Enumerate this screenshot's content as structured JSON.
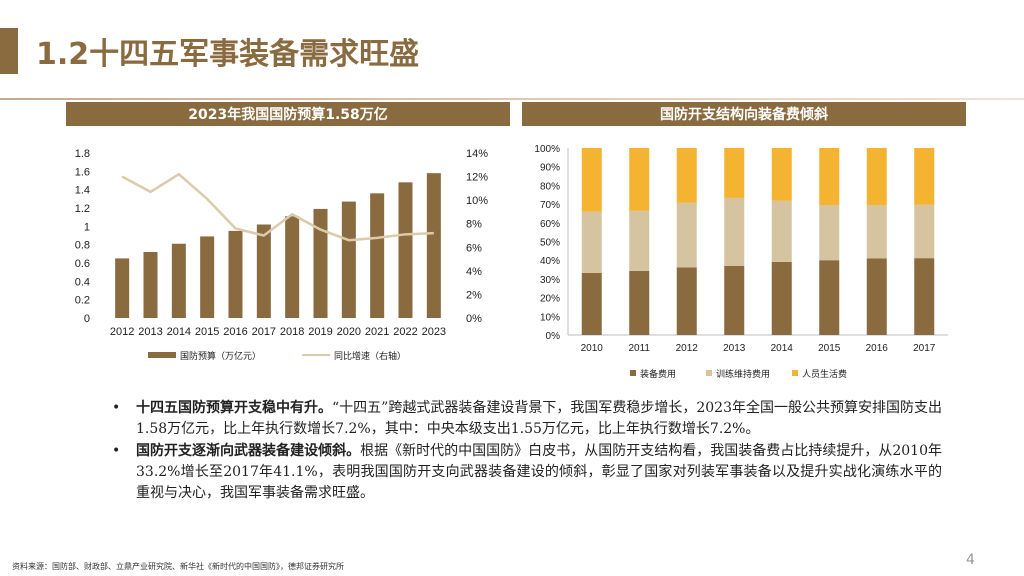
{
  "page": {
    "title": "1.2十四五军事装备需求旺盛",
    "page_number": "4",
    "source": "资料来源：国防部、财政部、立鼎产业研究院、新华社《新时代的中国国防》，德邦证券研究所"
  },
  "left_panel": {
    "header": "2023年我国国防预算1.58万亿"
  },
  "right_panel": {
    "header": "国防开支结构向装备费倾斜"
  },
  "colors": {
    "brown": "#8a6a3f",
    "line": "#dccbaa",
    "tan": "#d6c4a0",
    "gold": "#f4b431"
  },
  "chart_data": [
    {
      "type": "bar",
      "categories": [
        "2012",
        "2013",
        "2014",
        "2015",
        "2016",
        "2017",
        "2018",
        "2019",
        "2020",
        "2021",
        "2022",
        "2023"
      ],
      "series": [
        {
          "name": "国防预算（万亿元）",
          "type": "bar",
          "axis": "left",
          "values": [
            0.65,
            0.72,
            0.81,
            0.89,
            0.95,
            1.02,
            1.11,
            1.19,
            1.27,
            1.36,
            1.48,
            1.58
          ]
        },
        {
          "name": "同比增速（右轴）",
          "type": "line",
          "axis": "right",
          "values": [
            12.0,
            10.7,
            12.2,
            10.1,
            7.6,
            7.0,
            8.8,
            7.5,
            6.6,
            6.8,
            7.1,
            7.2
          ]
        }
      ],
      "y_left": {
        "range": [
          0,
          1.8
        ],
        "ticks": [
          "0",
          "0.2",
          "0.4",
          "0.6",
          "0.8",
          "1",
          "1.2",
          "1.4",
          "1.6",
          "1.8"
        ]
      },
      "y_right": {
        "range": [
          0,
          14
        ],
        "ticks": [
          "0%",
          "2%",
          "4%",
          "6%",
          "8%",
          "10%",
          "12%",
          "14%"
        ]
      },
      "legend_position": "bottom"
    },
    {
      "type": "bar",
      "stacked": true,
      "categories": [
        "2010",
        "2011",
        "2012",
        "2013",
        "2014",
        "2015",
        "2016",
        "2017"
      ],
      "series": [
        {
          "name": "装备费用",
          "values": [
            33.2,
            34.3,
            36.2,
            37.0,
            39.1,
            40.0,
            41.0,
            41.1
          ]
        },
        {
          "name": "训练维持费用",
          "values": [
            32.7,
            32.1,
            34.5,
            36.3,
            32.8,
            29.5,
            28.5,
            28.5
          ]
        },
        {
          "name": "人员生活费",
          "values": [
            34.1,
            33.6,
            29.3,
            26.7,
            28.1,
            30.5,
            30.5,
            30.4
          ]
        }
      ],
      "y_axis": {
        "range": [
          0,
          100
        ],
        "ticks": [
          "0%",
          "10%",
          "20%",
          "30%",
          "40%",
          "50%",
          "60%",
          "70%",
          "80%",
          "90%",
          "100%"
        ]
      },
      "legend_position": "bottom"
    }
  ],
  "bullets": [
    {
      "bold": "十四五国防预算开支稳中有升。",
      "text": "“十四五”跨越式武器装备建设背景下，我国军费稳步增长，2023年全国一般公共预算安排国防支出1.58万亿元，比上年执行数增长7.2%，其中：中央本级支出1.55万亿元，比上年执行数增长7.2%。"
    },
    {
      "bold": "国防开支逐渐向武器装备建设倾斜。",
      "text": "根据《新时代的中国国防》白皮书，从国防开支结构看，我国装备费占比持续提升，从2010年33.2%增长至2017年41.1%，表明我国国防开支向武器装备建设的倾斜，彰显了国家对列装军事装备以及提升实战化演练水平的重视与决心，我国军事装备需求旺盛。"
    }
  ]
}
